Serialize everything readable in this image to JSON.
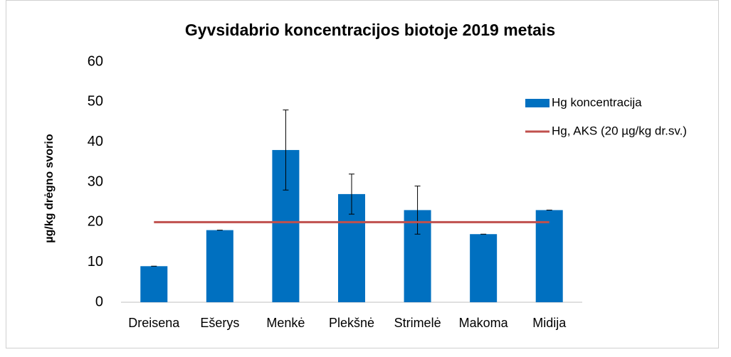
{
  "chart_data": {
    "type": "bar",
    "title": "Gyvsidabrio koncentracijos biotoje 2019 metais",
    "y_label": "µg/kg  drėgno svorio",
    "categories": [
      "Dreisena",
      "Ešerys",
      "Menkė",
      "Plekšnė",
      "Strimelė",
      "Makoma",
      "Midija"
    ],
    "series": [
      {
        "name": "Hg koncentracija",
        "type": "bar",
        "color": "#0070c0",
        "values": [
          9,
          18,
          38,
          27,
          23,
          17,
          23
        ],
        "errors": [
          0,
          0,
          10,
          5,
          6,
          0,
          0
        ]
      },
      {
        "name": "Hg, AKS (20 µg/kg dr.sv.)",
        "type": "line",
        "color": "#c0504d",
        "values": [
          20,
          20,
          20,
          20,
          20,
          20,
          20
        ]
      }
    ],
    "ylim": [
      0,
      60
    ],
    "yticks": [
      0,
      10,
      20,
      30,
      40,
      50,
      60
    ],
    "grid": false,
    "legend": "right"
  }
}
